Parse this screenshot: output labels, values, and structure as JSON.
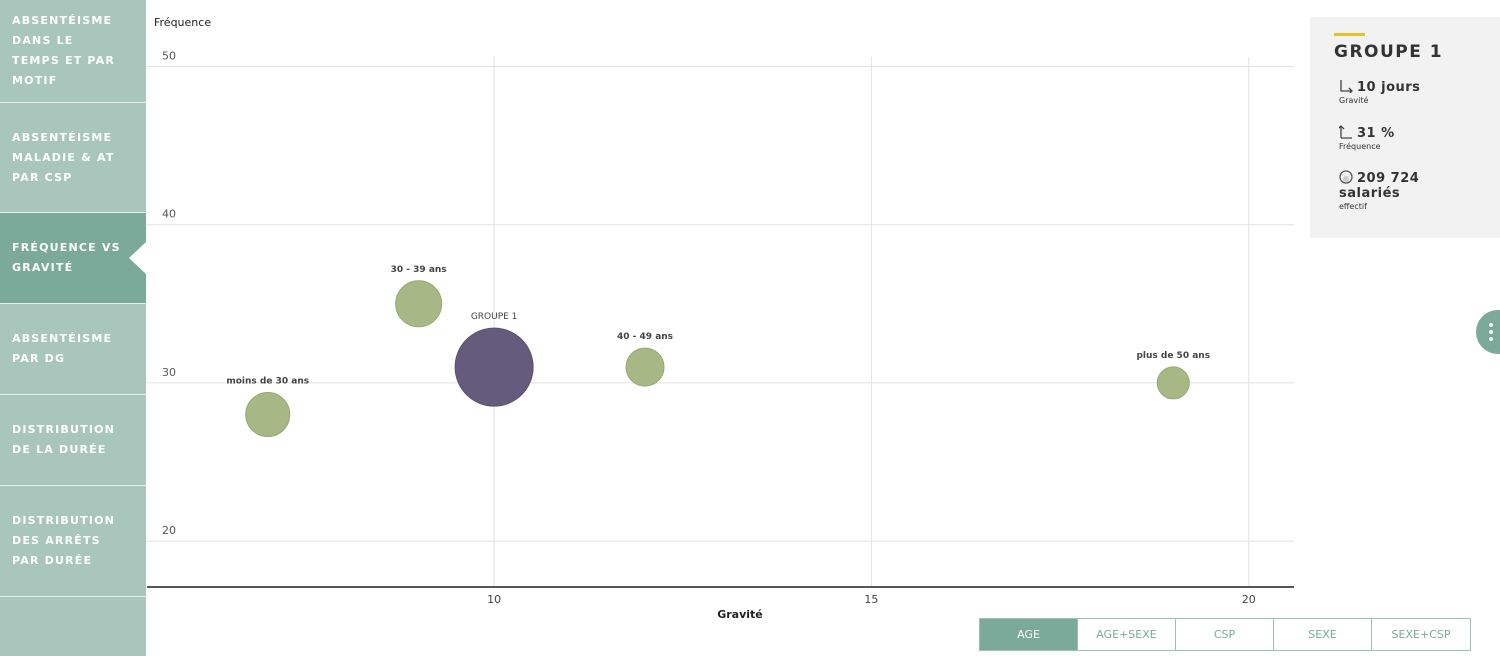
{
  "sidebar": {
    "items": [
      {
        "label": "ABSENTÉISME DANS LE TEMPS ET PAR MOTIF",
        "active": false
      },
      {
        "label": "ABSENTÉISME MALADIE & AT PAR CSP",
        "active": false
      },
      {
        "label": "FRÉQUENCE VS GRAVITÉ",
        "active": true
      },
      {
        "label": "ABSENTÉISME PAR DG",
        "active": false
      },
      {
        "label": "DISTRIBUTION DE LA DURÉE",
        "active": false
      },
      {
        "label": "DISTRIBUTION DES ARRÊTS PAR DURÉE",
        "active": false
      }
    ]
  },
  "chart_data": {
    "type": "scatter",
    "xlabel": "Gravité",
    "ylabel": "Fréquence",
    "xlim": [
      5.4,
      20.6
    ],
    "ylim": [
      17.1,
      50.6
    ],
    "xticks": [
      10,
      15,
      20
    ],
    "yticks": [
      20,
      30,
      40,
      50
    ],
    "grid": true,
    "points": [
      {
        "label": "moins de 30 ans",
        "x": 7,
        "y": 28,
        "size": 22,
        "color": "#a7b886"
      },
      {
        "label": "30 - 39 ans",
        "x": 9,
        "y": 35,
        "size": 23,
        "color": "#a7b886"
      },
      {
        "label": "GROUPE 1",
        "x": 10,
        "y": 31,
        "size": 39,
        "color": "#655c7d"
      },
      {
        "label": "40 - 49 ans",
        "x": 12,
        "y": 31,
        "size": 19,
        "color": "#a7b886"
      },
      {
        "label": "plus de 50 ans",
        "x": 19,
        "y": 30,
        "size": 16,
        "color": "#a7b886"
      }
    ]
  },
  "info": {
    "title": "GROUPE 1",
    "gravite_value": "10 jours",
    "gravite_label": "Gravité",
    "frequence_value": "31 %",
    "frequence_label": "Fréquence",
    "effectif_value": "209 724 salariés",
    "effectif_label": "effectif"
  },
  "buttons": [
    {
      "label": "AGE",
      "active": true
    },
    {
      "label": "AGE+SEXE"
    },
    {
      "label": "CSP"
    },
    {
      "label": "SEXE"
    },
    {
      "label": "SEXE+CSP"
    }
  ],
  "icons": {
    "more": "vertical-ellipsis-icon"
  }
}
